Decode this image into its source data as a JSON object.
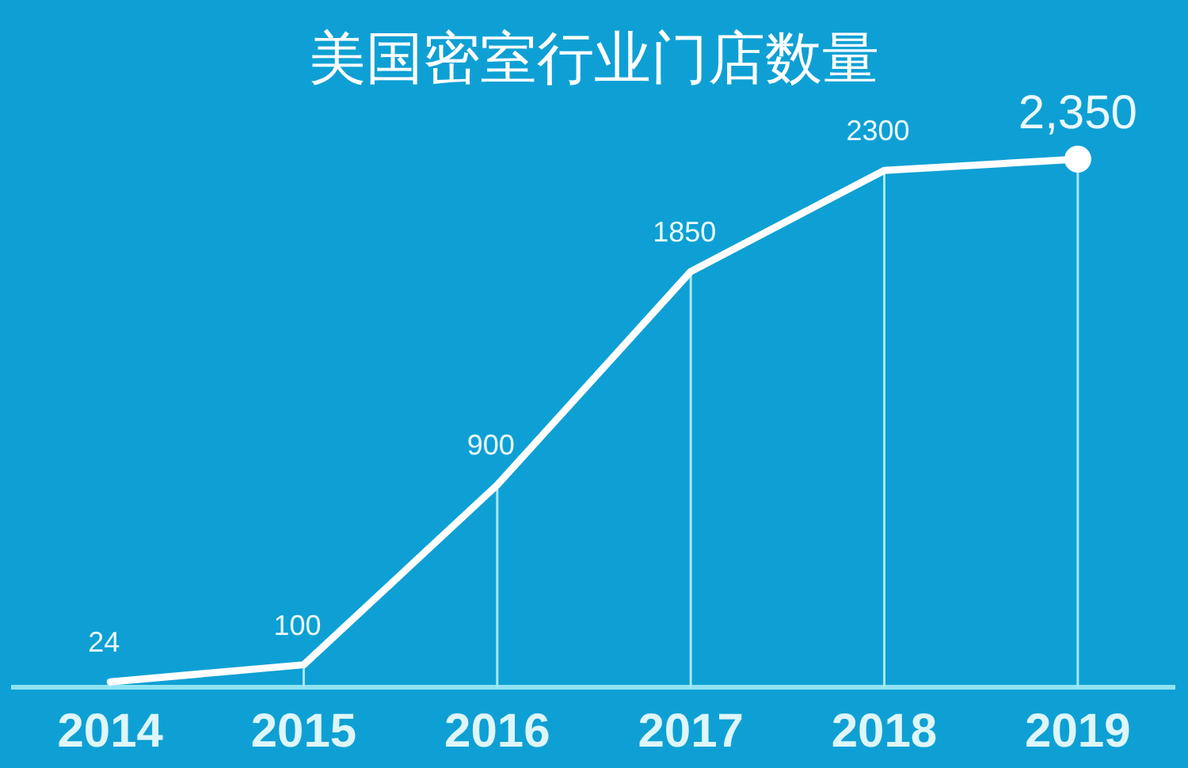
{
  "chart_data": {
    "type": "line",
    "title": "美国密室行业门店数量",
    "categories": [
      "2014",
      "2015",
      "2016",
      "2017",
      "2018",
      "2019"
    ],
    "series": [
      {
        "color": "#ffffff",
        "values": [
          24,
          100,
          900,
          1850,
          2300,
          2350
        ],
        "value_labels": [
          "24",
          "100",
          "900",
          "1850",
          "2300",
          "2,350"
        ]
      },
      {
        "type": "scatter",
        "color": "#ffffff",
        "values": [
          null,
          null,
          null,
          null,
          null,
          2350
        ],
        "marker": "circle"
      }
    ],
    "grid": "x",
    "line_style": "solid",
    "tick_labels": "x"
  }
}
